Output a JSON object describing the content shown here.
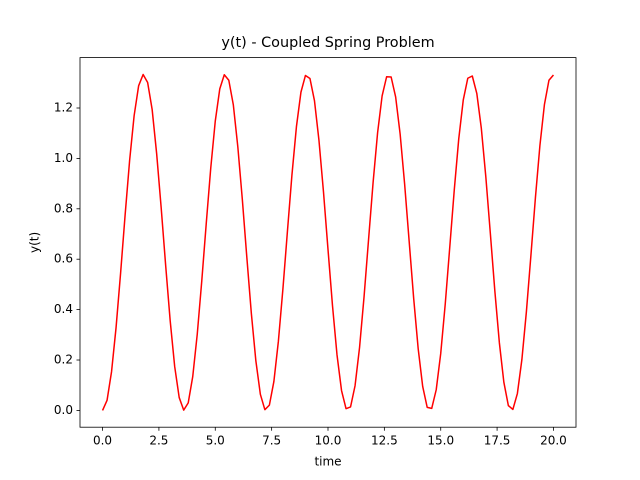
{
  "chart_data": {
    "type": "line",
    "title": "y(t) - Coupled Spring Problem",
    "xlabel": "time",
    "ylabel": "y(t)",
    "color": "#ff0000",
    "x": [
      0,
      0.2,
      0.4,
      0.6,
      0.8,
      1,
      1.2,
      1.4,
      1.6,
      1.8,
      2,
      2.2,
      2.4,
      2.6,
      2.8,
      3,
      3.2,
      3.4,
      3.6,
      3.8,
      4,
      4.2,
      4.4,
      4.6,
      4.8,
      5,
      5.2,
      5.4,
      5.6,
      5.8,
      6,
      6.2,
      6.4,
      6.6,
      6.8,
      7,
      7.2,
      7.4,
      7.6,
      7.8,
      8,
      8.2,
      8.4,
      8.6,
      8.8,
      9,
      9.2,
      9.4,
      9.6,
      9.8,
      10,
      10.2,
      10.4,
      10.6,
      10.8,
      11,
      11.2,
      11.4,
      11.6,
      11.8,
      12,
      12.2,
      12.4,
      12.6,
      12.8,
      13,
      13.2,
      13.4,
      13.6,
      13.8,
      14,
      14.2,
      14.4,
      14.6,
      14.8,
      15,
      15.2,
      15.4,
      15.6,
      15.8,
      16,
      16.2,
      16.4,
      16.6,
      16.8,
      17,
      17.2,
      17.4,
      17.6,
      17.8,
      18,
      18.2,
      18.4,
      18.6,
      18.8,
      19,
      19.2,
      19.4,
      19.6,
      19.8,
      20
    ],
    "values": [
      0,
      0.04,
      0.154,
      0.329,
      0.544,
      0.774,
      0.991,
      1.169,
      1.288,
      1.333,
      1.301,
      1.194,
      1.019,
      0.805,
      0.575,
      0.356,
      0.174,
      0.051,
      0.001,
      0.03,
      0.134,
      0.302,
      0.513,
      0.742,
      0.962,
      1.148,
      1.276,
      1.332,
      1.31,
      1.213,
      1.046,
      0.837,
      0.607,
      0.385,
      0.197,
      0.064,
      0.003,
      0.021,
      0.115,
      0.275,
      0.482,
      0.71,
      0.934,
      1.126,
      1.263,
      1.329,
      1.317,
      1.229,
      1.071,
      0.867,
      0.639,
      0.415,
      0.22,
      0.079,
      0.007,
      0.014,
      0.098,
      0.25,
      0.452,
      0.679,
      0.904,
      1.102,
      1.248,
      1.324,
      1.323,
      1.244,
      1.096,
      0.897,
      0.671,
      0.445,
      0.245,
      0.095,
      0.012,
      0.008,
      0.082,
      0.226,
      0.422,
      0.647,
      0.874,
      1.078,
      1.232,
      1.318,
      1.327,
      1.258,
      1.12,
      0.927,
      0.703,
      0.474,
      0.269,
      0.112,
      0.019,
      0.004,
      0.067,
      0.202,
      0.392,
      0.615,
      0.844,
      1.052,
      1.214,
      1.31,
      1.331
    ],
    "xlim": [
      -1,
      21
    ],
    "ylim": [
      -0.0666,
      1.4
    ],
    "xticks": [
      {
        "value": 0,
        "label": "0.0"
      },
      2.5,
      {
        "value": 5,
        "label": "5.0"
      },
      7.5,
      {
        "value": 10,
        "label": "10.0"
      },
      12.5,
      {
        "value": 15,
        "label": "15.0"
      },
      17.5,
      {
        "value": 20,
        "label": "20.0"
      }
    ],
    "yticks": [
      {
        "value": 0,
        "label": "0.0"
      },
      0.2,
      0.4,
      0.6,
      0.8,
      {
        "value": 1,
        "label": "1.0"
      },
      1.2
    ]
  }
}
